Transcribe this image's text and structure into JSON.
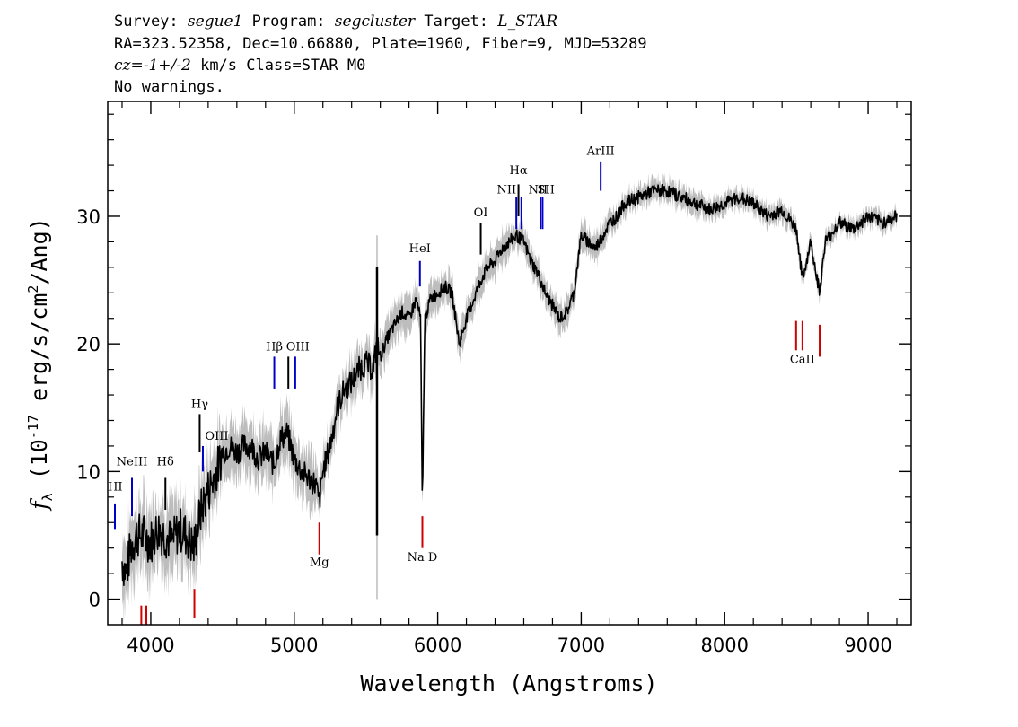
{
  "header": {
    "line1": {
      "survey_label": "Survey:",
      "survey": "segue1",
      "program_label": "Program:",
      "program": "segcluster",
      "target_label": "Target:",
      "target": "L_STAR"
    },
    "line2": "RA=323.52358, Dec=10.66880, Plate=1960, Fiber=9, MJD=53289",
    "line3": {
      "cz_label": "cz=",
      "cz_value": "-1+/-2",
      "cz_unit": "km/s",
      "class": "Class=STAR M0"
    },
    "line4": "No warnings."
  },
  "chart_data": {
    "type": "line",
    "xlabel": "Wavelength (Angstroms)",
    "ylabel": "f_λ (10^-17 erg/s/cm^2/Ang)",
    "xlim": [
      3700,
      9300
    ],
    "ylim": [
      -2,
      39
    ],
    "x_ticks": [
      4000,
      5000,
      6000,
      7000,
      8000,
      9000
    ],
    "y_ticks": [
      0,
      10,
      20,
      30
    ],
    "series": [
      {
        "color": "#000000",
        "x": [
          3800,
          3830,
          3860,
          3900,
          3950,
          4000,
          4050,
          4100,
          4150,
          4200,
          4250,
          4300,
          4340,
          4380,
          4420,
          4460,
          4500,
          4550,
          4600,
          4650,
          4700,
          4750,
          4800,
          4861,
          4900,
          4950,
          5000,
          5050,
          5100,
          5150,
          5175,
          5200,
          5250,
          5300,
          5350,
          5400,
          5450,
          5500,
          5550,
          5577,
          5600,
          5650,
          5700,
          5750,
          5800,
          5850,
          5880,
          5893,
          5910,
          5950,
          6000,
          6050,
          6100,
          6150,
          6200,
          6250,
          6300,
          6350,
          6400,
          6450,
          6500,
          6550,
          6600,
          6650,
          6700,
          6750,
          6800,
          6850,
          6900,
          6950,
          7000,
          7050,
          7100,
          7150,
          7200,
          7250,
          7300,
          7400,
          7500,
          7600,
          7700,
          7800,
          7900,
          8000,
          8100,
          8200,
          8300,
          8400,
          8500,
          8542,
          8600,
          8662,
          8700,
          8800,
          8900,
          9000,
          9100,
          9200
        ],
        "y": [
          3.0,
          2.0,
          4.0,
          5.0,
          5.0,
          4.5,
          5.5,
          5.0,
          4.5,
          5.5,
          5.0,
          4.0,
          6.5,
          8.0,
          9.0,
          10.0,
          11.5,
          12.0,
          11.5,
          12.0,
          12.0,
          11.0,
          11.5,
          10.5,
          12.5,
          13.0,
          11.0,
          10.0,
          9.5,
          9.0,
          7.5,
          10.0,
          12.0,
          15.0,
          16.5,
          17.0,
          18.0,
          18.5,
          18.0,
          20.0,
          19.0,
          20.5,
          21.5,
          22.5,
          22.0,
          23.5,
          22.0,
          7.0,
          22.0,
          23.5,
          24.0,
          24.5,
          24.0,
          20.0,
          22.0,
          23.5,
          25.0,
          26.0,
          26.5,
          27.5,
          28.0,
          28.5,
          28.0,
          26.5,
          25.5,
          24.0,
          23.0,
          22.0,
          22.5,
          24.0,
          28.5,
          28.0,
          27.5,
          28.5,
          29.5,
          30.0,
          31.0,
          31.5,
          32.0,
          32.0,
          31.5,
          31.0,
          30.5,
          31.0,
          31.5,
          31.0,
          30.0,
          30.5,
          29.0,
          25.0,
          28.0,
          24.0,
          28.0,
          29.5,
          29.0,
          30.0,
          29.5,
          30.0
        ]
      }
    ],
    "error_band": {
      "color": "#bdbdbd",
      "half_width": [
        2.5,
        2.0,
        1.5,
        1.2,
        1.0,
        0.8,
        0.7,
        0.6
      ]
    },
    "spike": {
      "x": 5577,
      "y_min": 0,
      "y_max": 28.5,
      "core_top": 26.0,
      "core_bottom": 5.0
    },
    "emission_lines": [
      {
        "label": "HI",
        "x": 3750,
        "y0": 5.5,
        "y1": 7.5,
        "lx": 3752,
        "ly": 8.5,
        "color": "#0000c8"
      },
      {
        "label": "NeIII",
        "x": 3869,
        "y0": 6.5,
        "y1": 9.5,
        "lx": 3869,
        "ly": 10.5,
        "color": "#0000c8"
      },
      {
        "label": "Hδ",
        "x": 4102,
        "y0": 7.0,
        "y1": 9.5,
        "lx": 4102,
        "ly": 10.5,
        "color": "#000000"
      },
      {
        "label": "Hγ",
        "x": 4341,
        "y0": 11.5,
        "y1": 14.5,
        "lx": 4341,
        "ly": 15.0,
        "color": "#000000"
      },
      {
        "label": "OIII",
        "x": 4363,
        "y0": 10.0,
        "y1": 12.0,
        "lx": 4460,
        "ly": 12.5,
        "color": "#0000c8"
      },
      {
        "label": "Hβ",
        "x": 4861,
        "y0": 16.5,
        "y1": 19.0,
        "lx": 4861,
        "ly": 19.5,
        "color": "#0000c8"
      },
      {
        "label": "OIII",
        "x": 4959,
        "y0": 16.5,
        "y1": 19.0,
        "lx": 5025,
        "ly": 19.5,
        "color": "#000000"
      },
      {
        "label": "OIII",
        "x": 5007,
        "y0": 16.5,
        "y1": 19.0,
        "lx": null,
        "ly": null,
        "color": "#0000c8"
      },
      {
        "label": "HeI",
        "x": 5876,
        "y0": 24.5,
        "y1": 26.5,
        "lx": 5876,
        "ly": 27.2,
        "color": "#0000c8"
      },
      {
        "label": "OI",
        "x": 6300,
        "y0": 27.0,
        "y1": 29.5,
        "lx": 6300,
        "ly": 30.0,
        "color": "#000000"
      },
      {
        "label": "NII",
        "x": 6548,
        "y0": 29.0,
        "y1": 31.5,
        "lx": 6480,
        "ly": 31.8,
        "color": "#0000c8"
      },
      {
        "label": "Hα",
        "x": 6563,
        "y0": 30.0,
        "y1": 32.5,
        "lx": 6563,
        "ly": 33.3,
        "color": "#000000"
      },
      {
        "label": "NII",
        "x": 6583,
        "y0": 29.0,
        "y1": 31.5,
        "lx": null,
        "ly": null,
        "color": "#0000c8"
      },
      {
        "label": "NII",
        "x": 6716,
        "y0": 29.0,
        "y1": 31.5,
        "lx": 6700,
        "ly": 31.8,
        "color": "#0000c8"
      },
      {
        "label": "SII",
        "x": 6731,
        "y0": 29.0,
        "y1": 31.5,
        "lx": 6755,
        "ly": 31.8,
        "color": "#0000c8"
      },
      {
        "label": "ArIII",
        "x": 7136,
        "y0": 32.0,
        "y1": 34.3,
        "lx": 7136,
        "ly": 34.8,
        "color": "#0000c8"
      }
    ],
    "absorption_lines": [
      {
        "label": "",
        "x": 3934,
        "y0": -2.0,
        "y1": -0.5,
        "lx": null,
        "ly": null,
        "color": "#d00000"
      },
      {
        "label": "",
        "x": 3969,
        "y0": -2.0,
        "y1": -0.5,
        "lx": null,
        "ly": null,
        "color": "#d00000"
      },
      {
        "label": "",
        "x": 4304,
        "y0": -1.5,
        "y1": 0.8,
        "lx": null,
        "ly": null,
        "color": "#d00000"
      },
      {
        "label": "Mg",
        "x": 5175,
        "y0": 3.5,
        "y1": 6.0,
        "lx": 5175,
        "ly": 2.6,
        "color": "#d00000"
      },
      {
        "label": "Na D",
        "x": 5893,
        "y0": 4.0,
        "y1": 6.5,
        "lx": 5893,
        "ly": 3.0,
        "color": "#d00000"
      },
      {
        "label": "CaII",
        "x": 8498,
        "y0": 19.5,
        "y1": 21.8,
        "lx": 8542,
        "ly": 18.5,
        "color": "#d00000"
      },
      {
        "label": "",
        "x": 8542,
        "y0": 19.5,
        "y1": 21.8,
        "lx": null,
        "ly": null,
        "color": "#d00000"
      },
      {
        "label": "",
        "x": 8662,
        "y0": 19.0,
        "y1": 21.5,
        "lx": null,
        "ly": null,
        "color": "#d00000"
      }
    ]
  }
}
